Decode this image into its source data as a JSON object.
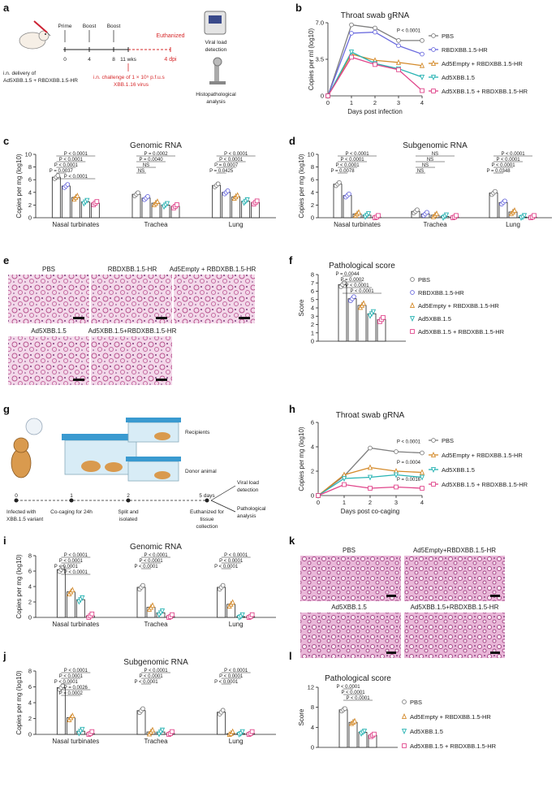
{
  "panels": [
    "a",
    "b",
    "c",
    "d",
    "e",
    "f",
    "g",
    "h",
    "i",
    "j",
    "k",
    "l"
  ],
  "schematic_a": {
    "delivery": "i.n. delivery of",
    "delivery2": "Ad5XBB.1.5 + RBDXBB.1.5-HR",
    "steps": [
      "Prime",
      "Boost",
      "Boost"
    ],
    "timeline": [
      "0",
      "4",
      "8",
      "11 wks",
      "4 dpi"
    ],
    "euthanized": "Euthanized",
    "challenge1": "i.n. challenge of 1 × 10⁵ p.f.u.s",
    "challenge2": "XBB.1.16 virus",
    "viral1": "Viral load",
    "viral2": "detection",
    "histo1": "Histopathological",
    "histo2": "analysis"
  },
  "schematic_g": {
    "recipients": "Recipients",
    "donor": "Donor animal",
    "steps": [
      "0",
      "1",
      "2",
      "5 days"
    ],
    "s0a": "Infected with",
    "s0b": "XBB.1.5 variant",
    "s1": "Co-caging for 24h",
    "s2a": "Split and",
    "s2b": "isolated",
    "s3a": "Euthanized for",
    "s3b": "tissue",
    "s3c": "collection",
    "out1a": "Viral load",
    "out1b": "detection",
    "out2a": "Pathological",
    "out2b": "analysis"
  },
  "histology_e": [
    "PBS",
    "RBDXBB.1.5-HR",
    "Ad5Empty + RBDXBB.1.5-HR",
    "Ad5XBB.1.5",
    "Ad5XBB.1.5+RBDXBB.1.5-HR"
  ],
  "histology_k": [
    "PBS",
    "Ad5Empty+RBDXBB.1.5-HR",
    "Ad5XBB.1.5",
    "Ad5XBB.1.5+RBDXBB.1.5-HR"
  ],
  "chart_data": [
    {
      "id": "b",
      "type": "line",
      "title": "Throat swab gRNA",
      "xlabel": "Days post infection",
      "ylabel": "Copies per ml (log10)",
      "x": [
        0,
        1,
        2,
        3,
        4
      ],
      "ylim": [
        0,
        7
      ],
      "yticks": [
        "0",
        "3.5",
        "7.0"
      ],
      "series": [
        {
          "name": "PBS",
          "color": "#7f7f7f",
          "values": [
            0,
            6.8,
            6.5,
            5.3,
            5.3
          ]
        },
        {
          "name": "RBDXBB.1.5-HR",
          "color": "#6a6ade",
          "values": [
            0,
            6.0,
            6.1,
            4.8,
            4.0
          ]
        },
        {
          "name": "Ad5Empty + RBDXBB.1.5-HR",
          "color": "#d48a2a",
          "values": [
            0,
            4.0,
            3.4,
            3.2,
            2.9
          ]
        },
        {
          "name": "Ad5XBB.1.5",
          "color": "#27b3b3",
          "values": [
            0,
            4.2,
            3.1,
            2.6,
            1.8
          ]
        },
        {
          "name": "Ad5XBB.1.5 + RBDXBB.1.5-HR",
          "color": "#e0448a",
          "values": [
            0,
            3.7,
            3.0,
            2.5,
            0.5
          ]
        }
      ],
      "annotation": "P < 0.0001"
    },
    {
      "id": "c",
      "type": "bar",
      "title": "Genomic RNA",
      "ylabel": "Copies per mg (log10)",
      "categories": [
        "Nasal turbinates",
        "Trachea",
        "Lung"
      ],
      "ylim": [
        0,
        10
      ],
      "yticks": [
        "0",
        "2",
        "4",
        "6",
        "8",
        "10"
      ],
      "series": [
        {
          "name": "PBS",
          "values": [
            6.4,
            3.7,
            5.1
          ]
        },
        {
          "name": "RBDXBB.1.5-HR",
          "values": [
            5.0,
            3.1,
            4.0
          ]
        },
        {
          "name": "Ad5Empty + RBDXBB.1.5-HR",
          "values": [
            3.2,
            2.3,
            3.3
          ]
        },
        {
          "name": "Ad5XBB.1.5",
          "values": [
            2.5,
            2.0,
            2.6
          ]
        },
        {
          "name": "Ad5XBB.1.5 + RBDXBB.1.5-HR",
          "values": [
            2.3,
            1.8,
            2.4
          ]
        }
      ],
      "sig": [
        [
          "P < 0.0001",
          "P < 0.0001",
          "P < 0.0001",
          "P = 0.0037",
          "P < 0.0001"
        ],
        [
          "P = 0.0002",
          "P = 0.0040",
          "NS",
          "NS"
        ],
        [
          "P < 0.0001",
          "P < 0.0001",
          "P = 0.0007",
          "P = 0.0425"
        ]
      ]
    },
    {
      "id": "d",
      "type": "bar",
      "title": "Subgenomic RNA",
      "ylabel": "Copies per mg (log10)",
      "categories": [
        "Nasal turbinates",
        "Trachea",
        "Lung"
      ],
      "ylim": [
        0,
        10
      ],
      "yticks": [
        "0",
        "2",
        "4",
        "6",
        "8",
        "10"
      ],
      "series": [
        {
          "name": "PBS",
          "values": [
            5.3,
            1.0,
            3.9
          ]
        },
        {
          "name": "RBDXBB.1.5-HR",
          "values": [
            3.5,
            0.6,
            2.4
          ]
        },
        {
          "name": "Ad5Empty + RBDXBB.1.5-HR",
          "values": [
            0.6,
            0.4,
            0.9
          ]
        },
        {
          "name": "Ad5XBB.1.5",
          "values": [
            0.4,
            0.2,
            0.1
          ]
        },
        {
          "name": "Ad5XBB.1.5 + RBDXBB.1.5-HR",
          "values": [
            0.1,
            0.1,
            0.1
          ]
        }
      ],
      "sig": [
        [
          "P < 0.0001",
          "P < 0.0001",
          "P < 0.0001",
          "P = 0.0078"
        ],
        [
          "NS",
          "NS",
          "NS",
          "NS"
        ],
        [
          "P < 0.0001",
          "P < 0.0001",
          "P < 0.0001",
          "P = 0.0348"
        ]
      ]
    },
    {
      "id": "f",
      "type": "bar",
      "title": "Pathological score",
      "ylabel": "Score",
      "ylim": [
        0,
        8
      ],
      "yticks": [
        "0",
        "1",
        "2",
        "3",
        "4",
        "5",
        "6",
        "7",
        "8"
      ],
      "series": [
        {
          "name": "PBS",
          "values": [
            6.8
          ]
        },
        {
          "name": "RBDXBB.1.5-HR",
          "values": [
            5.1
          ]
        },
        {
          "name": "Ad5Empty + RBDXBB.1.5-HR",
          "values": [
            4.3
          ]
        },
        {
          "name": "Ad5XBB.1.5",
          "values": [
            3.3
          ]
        },
        {
          "name": "Ad5XBB.1.5 + RBDXBB.1.5-HR",
          "values": [
            2.6
          ]
        }
      ],
      "sig": [
        "P = 0.0044",
        "P = 0.0002",
        "P < 0.0001",
        "P < 0.0001"
      ]
    },
    {
      "id": "h",
      "type": "line",
      "title": "Throat swab gRNA",
      "xlabel": "Days post co-caging",
      "ylabel": "Copies per mg (log10)",
      "x": [
        0,
        1,
        2,
        3,
        4
      ],
      "ylim": [
        0,
        6
      ],
      "yticks": [
        "0",
        "2",
        "4",
        "6"
      ],
      "series": [
        {
          "name": "PBS",
          "color": "#7f7f7f",
          "values": [
            0,
            1.6,
            3.9,
            3.6,
            3.5
          ]
        },
        {
          "name": "Ad5Empty + RBDXBB.1.5-HR",
          "color": "#d48a2a",
          "values": [
            0,
            1.7,
            2.3,
            2.0,
            1.9
          ]
        },
        {
          "name": "Ad5XBB.1.5",
          "color": "#27b3b3",
          "values": [
            0,
            1.4,
            1.5,
            1.7,
            1.5
          ]
        },
        {
          "name": "Ad5XBB.1.5 + RBDXBB.1.5-HR",
          "color": "#e0448a",
          "values": [
            0,
            0.9,
            0.6,
            0.7,
            0.6
          ]
        }
      ],
      "annotations": [
        "P < 0.0001",
        "P = 0.0004",
        "P = 0.0016"
      ]
    },
    {
      "id": "i",
      "type": "bar",
      "title": "Genomic RNA",
      "ylabel": "Copies per mg (log10)",
      "categories": [
        "Nasal turbinates",
        "Trachea",
        "Lung"
      ],
      "ylim": [
        0,
        8
      ],
      "yticks": [
        "0",
        "2",
        "4",
        "6",
        "8"
      ],
      "series": [
        {
          "name": "PBS",
          "values": [
            6.2,
            3.9,
            3.9
          ]
        },
        {
          "name": "Ad5Empty + RBDXBB.1.5-HR",
          "values": [
            3.3,
            1.3,
            1.7
          ]
        },
        {
          "name": "Ad5XBB.1.5",
          "values": [
            2.3,
            0.6,
            0.1
          ]
        },
        {
          "name": "Ad5XBB.1.5 + RBDXBB.1.5-HR",
          "values": [
            0.2,
            0.1,
            0.1
          ]
        }
      ],
      "sig": [
        [
          "P < 0.0001",
          "P < 0.0001",
          "P < 0.0001",
          "P < 0.0001"
        ],
        [
          "P < 0.0001",
          "P < 0.0001",
          "P < 0.0001"
        ],
        [
          "P < 0.0001",
          "P < 0.0001",
          "P < 0.0001"
        ]
      ]
    },
    {
      "id": "j",
      "type": "bar",
      "title": "Subgenomic RNA",
      "ylabel": "Copies per mg (log10)",
      "categories": [
        "Nasal turbinates",
        "Trachea",
        "Lung"
      ],
      "ylim": [
        0,
        8
      ],
      "yticks": [
        "0",
        "2",
        "4",
        "6",
        "8"
      ],
      "series": [
        {
          "name": "PBS",
          "values": [
            5.9,
            3.0,
            2.8
          ]
        },
        {
          "name": "Ad5Empty + RBDXBB.1.5-HR",
          "values": [
            2.1,
            0.3,
            0.1
          ]
        },
        {
          "name": "Ad5XBB.1.5",
          "values": [
            0.4,
            0.3,
            0.1
          ]
        },
        {
          "name": "Ad5XBB.1.5 + RBDXBB.1.5-HR",
          "values": [
            0.1,
            0.1,
            0.1
          ]
        }
      ],
      "sig": [
        [
          "P < 0.0001",
          "P < 0.0001",
          "P < 0.0001",
          "P = 0.0026",
          "P = 0.0002"
        ],
        [
          "P < 0.0001",
          "P < 0.0001",
          "P < 0.0001"
        ],
        [
          "P < 0.0001",
          "P < 0.0001",
          "P < 0.0001"
        ]
      ]
    },
    {
      "id": "l",
      "type": "bar",
      "title": "Pathological score",
      "ylabel": "Score",
      "ylim": [
        0,
        12
      ],
      "yticks": [
        "0",
        "4",
        "8",
        "12"
      ],
      "series": [
        {
          "name": "PBS",
          "values": [
            7.5
          ]
        },
        {
          "name": "Ad5Empty + RBDXBB.1.5-HR",
          "values": [
            5.0
          ]
        },
        {
          "name": "Ad5XBB.1.5",
          "values": [
            3.0
          ]
        },
        {
          "name": "Ad5XBB.1.5 + RBDXBB.1.5-HR",
          "values": [
            2.4
          ]
        }
      ],
      "sig": [
        "P < 0.0001",
        "P < 0.0001",
        "P < 0.0001"
      ]
    }
  ],
  "colors": {
    "PBS": "#7f7f7f",
    "RBD": "#6a6ade",
    "Ad5Empty": "#d48a2a",
    "Ad5": "#27b3b3",
    "Combo": "#e0448a"
  }
}
